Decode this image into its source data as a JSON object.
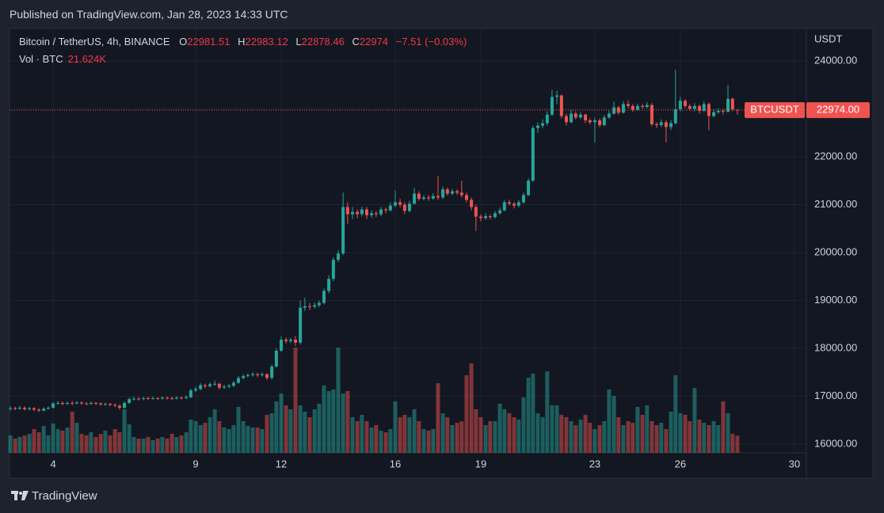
{
  "chart_data": {
    "type": "candlestick",
    "title": "Published on TradingView.com, Jan 28, 2023 14:33 UTC",
    "subtitle": "Bitcoin / TetherUS, 4h, BINANCE",
    "ohlc_labels": [
      "O",
      "H",
      "L",
      "C"
    ],
    "change": {
      "value": -7.51,
      "label": "−7.51"
    },
    "change_pct": {
      "value": -0.03,
      "label": "(−0.03%)"
    },
    "volume_title": "Vol · BTC",
    "volume_label": "21.624K",
    "y_axis_label": "USDT",
    "symbol_tag": "BTCUSDT",
    "last_price_label": "22974.00",
    "footer_brand": "TradingView",
    "up_color": "#26a69a",
    "down_color": "#ef5350",
    "grid": true,
    "xlim": [
      2.47,
      30.42
    ],
    "xticks": [
      4,
      9,
      12,
      16,
      19,
      23,
      26,
      30
    ],
    "ylim": [
      15818,
      24645
    ],
    "yticks": [
      {
        "value": 16000,
        "label": "16000.00"
      },
      {
        "value": 17000,
        "label": "17000.00"
      },
      {
        "value": 18000,
        "label": "18000.00"
      },
      {
        "value": 19000,
        "label": "19000.00"
      },
      {
        "value": 20000,
        "label": "20000.00"
      },
      {
        "value": 21000,
        "label": "21000.00"
      },
      {
        "value": 22000,
        "label": "22000.00"
      },
      {
        "value": 23000,
        "label": "23000.00"
      },
      {
        "value": 24000,
        "label": "24000.00"
      }
    ],
    "vlim": [
      0,
      534000
    ],
    "x": [
      2.5,
      2.67,
      2.83,
      3,
      3.17,
      3.33,
      3.5,
      3.67,
      3.83,
      4,
      4.17,
      4.33,
      4.5,
      4.67,
      4.83,
      5,
      5.17,
      5.33,
      5.5,
      5.67,
      5.83,
      6,
      6.17,
      6.33,
      6.5,
      6.67,
      6.83,
      7,
      7.17,
      7.33,
      7.5,
      7.67,
      7.83,
      8,
      8.17,
      8.33,
      8.5,
      8.67,
      8.83,
      9,
      9.17,
      9.33,
      9.5,
      9.67,
      9.83,
      10,
      10.17,
      10.33,
      10.5,
      10.67,
      10.83,
      11,
      11.17,
      11.33,
      11.5,
      11.67,
      11.83,
      12,
      12.17,
      12.33,
      12.5,
      12.67,
      12.83,
      13,
      13.17,
      13.33,
      13.5,
      13.67,
      13.83,
      14,
      14.17,
      14.33,
      14.5,
      14.67,
      14.83,
      15,
      15.17,
      15.33,
      15.5,
      15.67,
      15.83,
      16,
      16.17,
      16.33,
      16.5,
      16.67,
      16.83,
      17,
      17.17,
      17.33,
      17.5,
      17.67,
      17.83,
      18,
      18.17,
      18.33,
      18.5,
      18.67,
      18.83,
      19,
      19.17,
      19.33,
      19.5,
      19.67,
      19.83,
      20,
      20.17,
      20.33,
      20.5,
      20.67,
      20.83,
      21,
      21.17,
      21.33,
      21.5,
      21.67,
      21.83,
      22,
      22.17,
      22.33,
      22.5,
      22.67,
      22.83,
      23,
      23.17,
      23.33,
      23.5,
      23.67,
      23.83,
      24,
      24.17,
      24.33,
      24.5,
      24.67,
      24.83,
      25,
      25.17,
      25.33,
      25.5,
      25.67,
      25.83,
      26,
      26.17,
      26.33,
      26.5,
      26.67,
      26.83,
      27,
      27.17,
      27.33,
      27.5,
      27.67,
      27.83,
      28
    ],
    "open": [
      16740,
      16750,
      16740,
      16760,
      16730,
      16750,
      16720,
      16700,
      16740,
      16760,
      16850,
      16860,
      16840,
      16860,
      16850,
      16870,
      16850,
      16840,
      16860,
      16850,
      16830,
      16840,
      16820,
      16800,
      16760,
      16860,
      16940,
      16950,
      16940,
      16960,
      16950,
      16960,
      16950,
      16970,
      16960,
      16950,
      16970,
      16960,
      16980,
      17120,
      17150,
      17230,
      17210,
      17250,
      17260,
      17180,
      17200,
      17220,
      17280,
      17380,
      17420,
      17440,
      17460,
      17440,
      17460,
      17380,
      17620,
      17950,
      18180,
      18150,
      18180,
      18120,
      18850,
      18880,
      18870,
      18900,
      18950,
      19200,
      19450,
      19850,
      19980,
      20950,
      20800,
      20850,
      20800,
      20900,
      20780,
      20820,
      20800,
      20900,
      20880,
      20980,
      21050,
      21000,
      20870,
      21020,
      21230,
      21120,
      21150,
      21130,
      21180,
      21150,
      21320,
      21230,
      21280,
      21250,
      21200,
      21100,
      20950,
      20750,
      20720,
      20760,
      20740,
      20820,
      20880,
      21050,
      21020,
      20980,
      21050,
      21200,
      21500,
      22600,
      22650,
      22700,
      22880,
      23250,
      23280,
      22850,
      22720,
      22900,
      22820,
      22880,
      22760,
      22720,
      22760,
      22660,
      22820,
      22900,
      23030,
      22920,
      23100,
      23060,
      22980,
      23060,
      23040,
      23080,
      22680,
      22660,
      22720,
      22620,
      22700,
      22990,
      23170,
      23060,
      23000,
      23060,
      22960,
      23100,
      22850,
      22930,
      22960,
      22940,
      23210,
      22981.51
    ],
    "high": [
      16790,
      16780,
      16800,
      16790,
      16780,
      16770,
      16750,
      16770,
      16790,
      16880,
      16900,
      16890,
      16890,
      16900,
      16900,
      16890,
      16880,
      16890,
      16880,
      16870,
      16870,
      16860,
      16850,
      16830,
      16890,
      16970,
      16990,
      16980,
      16990,
      16990,
      16990,
      16980,
      17000,
      16990,
      16990,
      17000,
      16990,
      17020,
      17160,
      17200,
      17270,
      17260,
      17290,
      17330,
      17280,
      17240,
      17260,
      17320,
      17420,
      17460,
      17480,
      17500,
      17490,
      17500,
      17480,
      17660,
      18000,
      18250,
      18230,
      18220,
      18260,
      19000,
      19060,
      18950,
      18960,
      19000,
      19250,
      19530,
      19900,
      20050,
      21250,
      21050,
      20950,
      20900,
      20960,
      20950,
      20880,
      20870,
      20950,
      20940,
      21050,
      21300,
      21120,
      21050,
      21080,
      21350,
      21280,
      21200,
      21200,
      21240,
      21600,
      21380,
      21360,
      21330,
      21320,
      21500,
      21250,
      21150,
      21000,
      20800,
      20820,
      20800,
      20870,
      20940,
      21100,
      21100,
      21060,
      21100,
      21250,
      21550,
      22650,
      22720,
      22780,
      22950,
      23400,
      23380,
      23300,
      22900,
      22980,
      22950,
      22930,
      22900,
      22800,
      22820,
      22800,
      22870,
      22960,
      23150,
      23060,
      23160,
      23180,
      23100,
      23110,
      23100,
      23140,
      23120,
      22720,
      22780,
      22760,
      22760,
      23820,
      23250,
      23200,
      23100,
      23120,
      23090,
      23160,
      23130,
      22990,
      23010,
      23000,
      23500,
      23240,
      22983.12
    ],
    "low": [
      16700,
      16710,
      16720,
      16700,
      16700,
      16690,
      16670,
      16680,
      16720,
      16740,
      16820,
      16810,
      16820,
      16810,
      16830,
      16820,
      16810,
      16820,
      16820,
      16800,
      16800,
      16790,
      16770,
      16720,
      16740,
      16840,
      16910,
      16910,
      16920,
      16920,
      16930,
      16920,
      16930,
      16930,
      16920,
      16930,
      16930,
      16940,
      16960,
      17090,
      17120,
      17170,
      17180,
      17220,
      17140,
      17150,
      17170,
      17190,
      17260,
      17350,
      17390,
      17410,
      17400,
      17410,
      17340,
      17350,
      17600,
      17920,
      18100,
      18110,
      18050,
      18080,
      18780,
      18800,
      18830,
      18860,
      18920,
      19150,
      19400,
      19800,
      19950,
      20600,
      20700,
      20720,
      20750,
      20700,
      20730,
      20740,
      20760,
      20820,
      20850,
      20950,
      20940,
      20800,
      20840,
      21000,
      21080,
      21090,
      21080,
      21100,
      21100,
      21120,
      21190,
      21200,
      21200,
      21150,
      21050,
      20880,
      20450,
      20650,
      20680,
      20690,
      20710,
      20790,
      20860,
      20980,
      20920,
      20950,
      21020,
      21180,
      21480,
      22500,
      22600,
      22650,
      22850,
      23100,
      22800,
      22650,
      22700,
      22780,
      22790,
      22700,
      22680,
      22300,
      22620,
      22640,
      22790,
      22880,
      22880,
      22900,
      23020,
      22940,
      22960,
      23000,
      23010,
      22640,
      22600,
      22620,
      22300,
      22560,
      22680,
      22950,
      23020,
      22960,
      22950,
      22900,
      22930,
      22550,
      22820,
      22900,
      22880,
      22920,
      22950,
      22878.46
    ],
    "close": [
      16750,
      16740,
      16760,
      16730,
      16750,
      16720,
      16700,
      16740,
      16760,
      16850,
      16860,
      16840,
      16860,
      16850,
      16870,
      16850,
      16840,
      16860,
      16850,
      16830,
      16840,
      16820,
      16800,
      16760,
      16860,
      16940,
      16950,
      16940,
      16960,
      16950,
      16960,
      16950,
      16970,
      16960,
      16950,
      16970,
      16960,
      16980,
      17120,
      17150,
      17230,
      17210,
      17250,
      17260,
      17180,
      17200,
      17220,
      17280,
      17380,
      17420,
      17440,
      17460,
      17440,
      17460,
      17380,
      17620,
      17950,
      18180,
      18150,
      18180,
      18120,
      18850,
      18880,
      18870,
      18900,
      18950,
      19200,
      19450,
      19850,
      19980,
      20950,
      20800,
      20850,
      20800,
      20900,
      20780,
      20820,
      20800,
      20900,
      20880,
      20980,
      21050,
      21000,
      20870,
      21020,
      21230,
      21120,
      21150,
      21130,
      21180,
      21150,
      21320,
      21230,
      21280,
      21250,
      21200,
      21100,
      20950,
      20750,
      20720,
      20760,
      20740,
      20820,
      20880,
      21050,
      21020,
      20980,
      21050,
      21200,
      21500,
      22600,
      22650,
      22700,
      22880,
      23250,
      23280,
      22850,
      22720,
      22900,
      22820,
      22880,
      22760,
      22720,
      22760,
      22660,
      22820,
      22900,
      23030,
      22920,
      23100,
      23060,
      22980,
      23060,
      23040,
      23080,
      22680,
      22660,
      22720,
      22620,
      22700,
      22990,
      23170,
      23060,
      23000,
      23060,
      22960,
      23100,
      22850,
      22930,
      22960,
      22940,
      23210,
      22990,
      22974
    ],
    "volume": [
      22000,
      18000,
      20000,
      22000,
      24000,
      30000,
      26000,
      34000,
      22000,
      37000,
      30000,
      28000,
      32000,
      52000,
      38000,
      24000,
      22000,
      26000,
      20000,
      24000,
      28000,
      22000,
      30000,
      26000,
      55000,
      36000,
      20000,
      18000,
      18000,
      20000,
      16000,
      18000,
      20000,
      18000,
      24000,
      20000,
      22000,
      26000,
      42000,
      40000,
      35000,
      38000,
      45000,
      55000,
      40000,
      32000,
      30000,
      35000,
      58000,
      40000,
      34000,
      32000,
      32000,
      30000,
      48000,
      50000,
      65000,
      75000,
      60000,
      55000,
      133000,
      60000,
      52000,
      45000,
      55000,
      62000,
      85000,
      78000,
      80000,
      133000,
      75000,
      78000,
      45000,
      40000,
      48000,
      40000,
      32000,
      35000,
      28000,
      26000,
      30000,
      65000,
      45000,
      48000,
      45000,
      55000,
      40000,
      30000,
      28000,
      30000,
      88000,
      50000,
      45000,
      35000,
      38000,
      40000,
      98000,
      113000,
      55000,
      45000,
      35000,
      40000,
      40000,
      62000,
      55000,
      50000,
      45000,
      42000,
      70000,
      95000,
      100000,
      50000,
      45000,
      103000,
      60000,
      60000,
      48000,
      45000,
      40000,
      35000,
      42000,
      48000,
      38000,
      30000,
      35000,
      40000,
      80000,
      72000,
      45000,
      35000,
      40000,
      38000,
      58000,
      48000,
      60000,
      40000,
      35000,
      38000,
      30000,
      52000,
      98000,
      50000,
      48000,
      40000,
      82000,
      42000,
      38000,
      35000,
      40000,
      35000,
      65000,
      50000,
      24000,
      21624
    ]
  }
}
